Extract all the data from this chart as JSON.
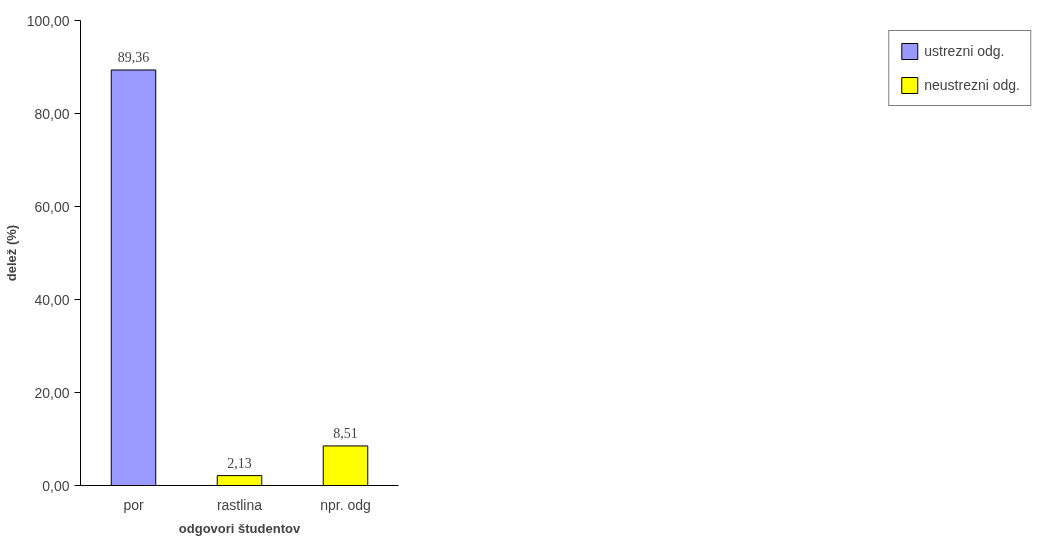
{
  "chart_data": {
    "type": "bar",
    "xlabel": "odgovori študentov",
    "ylabel": "delež (%)",
    "categories": [
      "por",
      "rastlina",
      "npr. odg"
    ],
    "series": [
      {
        "name": "ustrezni odg.",
        "color": "#9999ff",
        "values": [
          89.36,
          null,
          null
        ],
        "value_labels": [
          "89,36",
          null,
          null
        ]
      },
      {
        "name": "neustrezni odg.",
        "color": "#ffff00",
        "values": [
          null,
          2.13,
          8.51
        ],
        "value_labels": [
          null,
          "2,13",
          "8,51"
        ]
      }
    ],
    "ylim": [
      0,
      100
    ],
    "yticks": [
      {
        "value": 0,
        "label": "0,00"
      },
      {
        "value": 20,
        "label": "20,00"
      },
      {
        "value": 40,
        "label": "40,00"
      },
      {
        "value": 60,
        "label": "60,00"
      },
      {
        "value": 80,
        "label": "80,00"
      },
      {
        "value": 100,
        "label": "100,00"
      }
    ],
    "grid": false,
    "legend": "right"
  }
}
